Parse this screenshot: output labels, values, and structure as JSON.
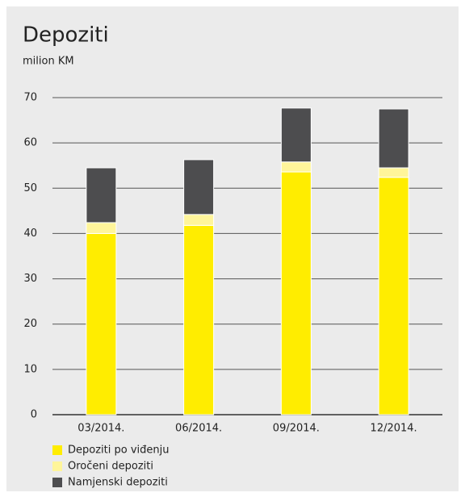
{
  "chart_data": {
    "type": "stacked_bar",
    "title": "Depoziti",
    "subtitle": "milion KM",
    "categories": [
      "03/2014.",
      "06/2014.",
      "09/2014.",
      "12/2014."
    ],
    "series": [
      {
        "name": "Depoziti po viđenju",
        "color": "#ffed00",
        "values": [
          40,
          41.8,
          53.6,
          52.4
        ]
      },
      {
        "name": "Oročeni depoziti",
        "color": "#fff59a",
        "values": [
          2.4,
          2.4,
          2.2,
          2.1
        ]
      },
      {
        "name": "Namjenski depoziti",
        "color": "#4d4d4f",
        "values": [
          12.1,
          12.1,
          11.9,
          13.0
        ]
      }
    ],
    "ylim": [
      0,
      70
    ],
    "yticks": [
      0,
      10,
      20,
      30,
      40,
      50,
      60,
      70
    ],
    "grid": true
  }
}
